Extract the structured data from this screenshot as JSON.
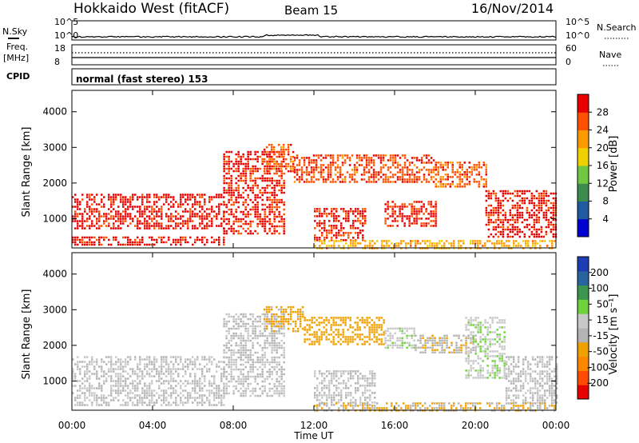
{
  "header": {
    "title": "Hokkaido West (fitACF)",
    "beam": "Beam 15",
    "date": "16/Nov/2014"
  },
  "aux": {
    "nsky_label": "N.Sky",
    "nsearch_label": "N.Search",
    "freq_label": "Freq.",
    "freq_unit": "[MHz]",
    "nave_label": "Nave",
    "cpid_label": "CPID",
    "cpid_text": "normal (fast stereo) 153",
    "noise_ticks": [
      "10^5",
      "10^0"
    ],
    "freq_ticks": [
      "18",
      "8"
    ],
    "nave_ticks": [
      "60",
      "0"
    ]
  },
  "colors": {
    "power_scale": [
      "#0000d0",
      "#205aa0",
      "#3c8c50",
      "#70c840",
      "#f0d000",
      "#ff9b00",
      "#ff5000",
      "#e80000"
    ],
    "velocity_scale": [
      "#e60000",
      "#ff4b00",
      "#ff8700",
      "#f0a000",
      "#b4b4b4",
      "#c8c8c8",
      "#6fd23c",
      "#3c9650",
      "#2864a0",
      "#1e3cb4"
    ]
  },
  "chart_data": [
    {
      "type": "heatmap",
      "name": "power",
      "ylabel": "Slant Range [km]",
      "yticks": [
        1000,
        2000,
        3000,
        4000
      ],
      "ylim": [
        180,
        4600
      ],
      "xticks": [
        "00:00",
        "04:00",
        "08:00",
        "12:00",
        "16:00",
        "20:00",
        "00:00"
      ],
      "xlim_hours": [
        0,
        24
      ],
      "colorbar": {
        "label": "Power [dB]",
        "ticks": [
          "4",
          "8",
          "12",
          "16",
          "20",
          "24",
          "28"
        ],
        "range": [
          0,
          30
        ]
      },
      "regions": [
        {
          "t0": 0.0,
          "t1": 7.5,
          "r0": 700,
          "r1": 1700,
          "value": 28
        },
        {
          "t0": 0.0,
          "t1": 7.5,
          "r0": 250,
          "r1": 500,
          "value": 28
        },
        {
          "t0": 7.5,
          "t1": 10.5,
          "r0": 600,
          "r1": 2900,
          "value": 27
        },
        {
          "t0": 9.5,
          "t1": 11.0,
          "r0": 2300,
          "r1": 3100,
          "value": 24
        },
        {
          "t0": 11.0,
          "t1": 18.0,
          "r0": 2000,
          "r1": 2800,
          "value": 25
        },
        {
          "t0": 12.0,
          "t1": 14.5,
          "r0": 400,
          "r1": 1300,
          "value": 27
        },
        {
          "t0": 15.5,
          "t1": 18.0,
          "r0": 800,
          "r1": 1500,
          "value": 27
        },
        {
          "t0": 18.0,
          "t1": 20.5,
          "r0": 1900,
          "r1": 2600,
          "value": 24
        },
        {
          "t0": 20.5,
          "t1": 24.0,
          "r0": 500,
          "r1": 1800,
          "value": 28
        },
        {
          "t0": 12.0,
          "t1": 24.0,
          "r0": 180,
          "r1": 400,
          "value": 20
        }
      ]
    },
    {
      "type": "heatmap",
      "name": "velocity",
      "ylabel": "Slant Range [km]",
      "xlabel": "Time UT",
      "yticks": [
        1000,
        2000,
        3000,
        4000
      ],
      "ylim": [
        180,
        4600
      ],
      "xticks": [
        "00:00",
        "04:00",
        "08:00",
        "12:00",
        "16:00",
        "20:00",
        "00:00"
      ],
      "xlim_hours": [
        0,
        24
      ],
      "colorbar": {
        "label": "Velocity [m s⁻¹]",
        "ticks": [
          "-200",
          "-100",
          "-50",
          "-15",
          "15",
          "50",
          "100",
          "200"
        ],
        "range": [
          -250,
          250
        ]
      },
      "regions": [
        {
          "t0": 0.0,
          "t1": 7.5,
          "r0": 300,
          "r1": 1700,
          "value": 0
        },
        {
          "t0": 7.5,
          "t1": 10.5,
          "r0": 600,
          "r1": 2900,
          "value": 0
        },
        {
          "t0": 9.5,
          "t1": 11.5,
          "r0": 2400,
          "r1": 3100,
          "value": -60
        },
        {
          "t0": 11.5,
          "t1": 15.5,
          "r0": 2000,
          "r1": 2800,
          "value": -80
        },
        {
          "t0": 15.5,
          "t1": 17.0,
          "r0": 1900,
          "r1": 2500,
          "value": 40
        },
        {
          "t0": 17.0,
          "t1": 20.0,
          "r0": 1800,
          "r1": 2300,
          "value": -40
        },
        {
          "t0": 19.5,
          "t1": 21.5,
          "r0": 1100,
          "r1": 2800,
          "value": 40
        },
        {
          "t0": 12.0,
          "t1": 15.0,
          "r0": 300,
          "r1": 1300,
          "value": 0
        },
        {
          "t0": 21.5,
          "t1": 24.0,
          "r0": 400,
          "r1": 1700,
          "value": 0
        },
        {
          "t0": 12.0,
          "t1": 24.0,
          "r0": 180,
          "r1": 400,
          "value": -50
        }
      ]
    }
  ]
}
